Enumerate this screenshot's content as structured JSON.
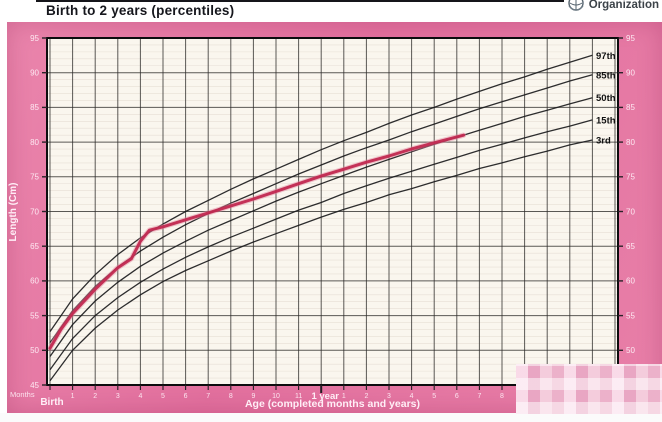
{
  "header": {
    "title": "Birth to 2 years (percentiles)",
    "logo_text": "Organization",
    "logo_icon": "who-emblem"
  },
  "colors": {
    "panel_pink": "#e2709e",
    "plot_bg": "#faf6ee",
    "grid_line": "#2e2c2a",
    "minor_grid": "#b4a396",
    "curve_black": "#1b1b1d",
    "patient_red": "#c12950",
    "patient_glow": "#e2849d",
    "axis_text_light": "#ffeef6",
    "label_black": "#111111"
  },
  "chart_data": {
    "type": "line",
    "title": "Birth to 2 years (percentiles)",
    "xlabel": "Age (completed months and years)",
    "ylabel": "Length (Cm)",
    "x_left_caption": "Months",
    "x_birth_label": "Birth",
    "x_year_label": "1 year",
    "ylim": [
      45,
      95
    ],
    "xlim_months": [
      0,
      25.2
    ],
    "y_ticks": [
      45,
      50,
      55,
      60,
      65,
      70,
      75,
      80,
      85,
      90,
      95
    ],
    "grid": "vertical line each month; bold horizontal each 5 cm; faint 1 cm lines",
    "legend_position": "curve end labels at right edge",
    "x_minor_tick_labels": [
      {
        "month": 1,
        "label": "1"
      },
      {
        "month": 2,
        "label": "2"
      },
      {
        "month": 3,
        "label": "3"
      },
      {
        "month": 4,
        "label": "4"
      },
      {
        "month": 5,
        "label": "5"
      },
      {
        "month": 6,
        "label": "6"
      },
      {
        "month": 7,
        "label": "7"
      },
      {
        "month": 8,
        "label": "8"
      },
      {
        "month": 9,
        "label": "9"
      },
      {
        "month": 10,
        "label": "10"
      },
      {
        "month": 11,
        "label": "11"
      },
      {
        "month": 13,
        "label": "1"
      },
      {
        "month": 14,
        "label": "2"
      },
      {
        "month": 15,
        "label": "3"
      },
      {
        "month": 16,
        "label": "4"
      },
      {
        "month": 17,
        "label": "5"
      },
      {
        "month": 18,
        "label": "6"
      },
      {
        "month": 19,
        "label": "7"
      },
      {
        "month": 20,
        "label": "8"
      },
      {
        "month": 21,
        "label": "9"
      }
    ],
    "percentiles": {
      "months": [
        0,
        1,
        2,
        3,
        4,
        5,
        6,
        7,
        8,
        9,
        10,
        11,
        12,
        13,
        14,
        15,
        16,
        17,
        18,
        19,
        20,
        21,
        22,
        23,
        24
      ],
      "series": [
        {
          "name": "97th",
          "values": [
            52.7,
            57.4,
            60.9,
            63.8,
            66.2,
            68.2,
            70.0,
            71.6,
            73.2,
            74.7,
            76.1,
            77.5,
            78.9,
            80.2,
            81.4,
            82.7,
            83.9,
            85.0,
            86.2,
            87.3,
            88.4,
            89.4,
            90.5,
            91.5,
            92.5
          ]
        },
        {
          "name": "85th",
          "values": [
            51.1,
            55.7,
            59.2,
            62.0,
            64.3,
            66.3,
            68.1,
            69.7,
            71.2,
            72.6,
            74.0,
            75.4,
            76.7,
            78.0,
            79.2,
            80.3,
            81.5,
            82.6,
            83.7,
            84.8,
            85.8,
            86.8,
            87.8,
            88.8,
            89.7
          ]
        },
        {
          "name": "50th",
          "values": [
            49.1,
            53.7,
            57.1,
            59.8,
            62.1,
            64.0,
            65.7,
            67.3,
            68.7,
            70.1,
            71.5,
            72.8,
            74.0,
            75.2,
            76.4,
            77.5,
            78.6,
            79.7,
            80.7,
            81.7,
            82.7,
            83.7,
            84.6,
            85.5,
            86.4
          ]
        },
        {
          "name": "15th",
          "values": [
            47.2,
            51.7,
            55.0,
            57.6,
            59.8,
            61.7,
            63.4,
            64.9,
            66.3,
            67.6,
            68.9,
            70.2,
            71.3,
            72.6,
            73.7,
            74.8,
            75.8,
            76.8,
            77.8,
            78.8,
            79.7,
            80.6,
            81.5,
            82.3,
            83.2
          ]
        },
        {
          "name": "3rd",
          "values": [
            45.6,
            50.0,
            53.2,
            55.8,
            58.0,
            59.9,
            61.5,
            62.9,
            64.3,
            65.6,
            66.8,
            68.0,
            69.2,
            70.3,
            71.3,
            72.4,
            73.3,
            74.3,
            75.2,
            76.2,
            77.0,
            77.9,
            78.7,
            79.6,
            80.3
          ]
        }
      ]
    },
    "patient_series": {
      "name": "measured-length",
      "points": [
        {
          "m": 0,
          "cm": 50.3
        },
        {
          "m": 0.5,
          "cm": 53.1
        },
        {
          "m": 1,
          "cm": 55.3
        },
        {
          "m": 2,
          "cm": 58.8
        },
        {
          "m": 3,
          "cm": 61.9
        },
        {
          "m": 3.6,
          "cm": 63.2
        },
        {
          "m": 4.0,
          "cm": 65.7
        },
        {
          "m": 4.4,
          "cm": 67.3
        },
        {
          "m": 5.0,
          "cm": 67.8
        },
        {
          "m": 6,
          "cm": 68.8
        },
        {
          "m": 7,
          "cm": 69.8
        },
        {
          "m": 8,
          "cm": 70.8
        },
        {
          "m": 9,
          "cm": 71.8
        },
        {
          "m": 10,
          "cm": 72.9
        },
        {
          "m": 11,
          "cm": 74.0
        },
        {
          "m": 12,
          "cm": 75.1
        },
        {
          "m": 13,
          "cm": 76.1
        },
        {
          "m": 14,
          "cm": 77.1
        },
        {
          "m": 15,
          "cm": 78.0
        },
        {
          "m": 16,
          "cm": 79.0
        },
        {
          "m": 17,
          "cm": 79.9
        },
        {
          "m": 18.3,
          "cm": 81.0
        }
      ]
    }
  }
}
